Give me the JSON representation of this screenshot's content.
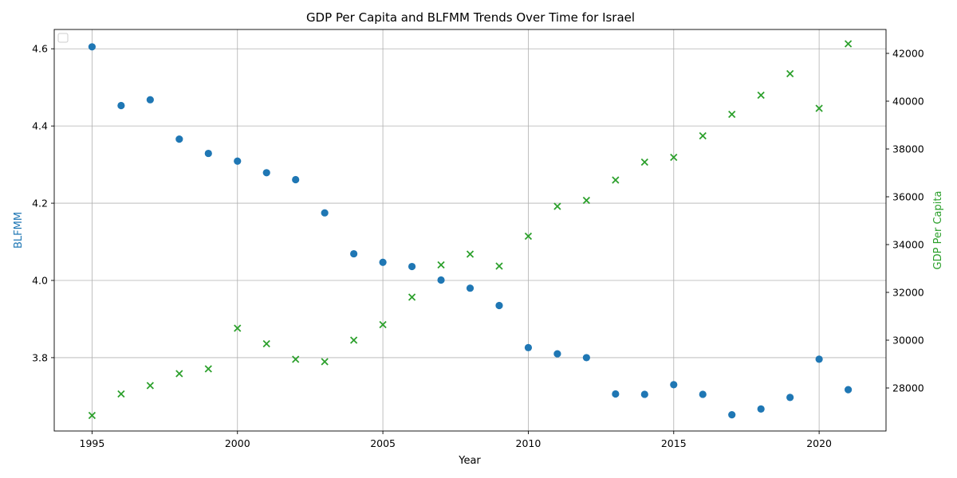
{
  "chart_data": {
    "type": "scatter",
    "title": "GDP Per Capita and BLFMM Trends Over Time for Israel",
    "xlabel": "Year",
    "ylabel_left": "BLFMM",
    "ylabel_right": "GDP Per Capita",
    "colors": {
      "left": "#1f77b4",
      "right": "#2ca02c",
      "grid": "#b0b0b0"
    },
    "xlim": [
      1993.7,
      2022.3
    ],
    "ylim_left": [
      3.61,
      4.65
    ],
    "ylim_right": [
      26200,
      43000
    ],
    "x_ticks": [
      1995,
      2000,
      2005,
      2010,
      2015,
      2020
    ],
    "y_ticks_left": [
      3.8,
      4.0,
      4.2,
      4.4,
      4.6
    ],
    "y_ticks_left_labels": [
      "3.8",
      "4.0",
      "4.2",
      "4.4",
      "4.6"
    ],
    "y_ticks_right": [
      28000,
      30000,
      32000,
      34000,
      36000,
      38000,
      40000,
      42000
    ],
    "y_ticks_right_labels": [
      "28000",
      "30000",
      "32000",
      "34000",
      "36000",
      "38000",
      "40000",
      "42000"
    ],
    "grid": true,
    "legend": "top-left (empty)",
    "x": [
      1995,
      1996,
      1997,
      1998,
      1999,
      2000,
      2001,
      2002,
      2003,
      2004,
      2005,
      2006,
      2007,
      2008,
      2009,
      2010,
      2011,
      2012,
      2013,
      2014,
      2015,
      2016,
      2017,
      2018,
      2019,
      2020,
      2021
    ],
    "series": [
      {
        "name": "BLFMM",
        "axis": "left",
        "marker": "circle",
        "values": [
          4.605,
          4.453,
          4.468,
          4.366,
          4.329,
          4.309,
          4.279,
          4.261,
          4.175,
          4.069,
          4.047,
          4.036,
          4.001,
          3.98,
          3.935,
          3.826,
          3.81,
          3.8,
          3.706,
          3.705,
          3.73,
          3.705,
          3.652,
          3.667,
          3.697,
          3.796,
          3.717
        ]
      },
      {
        "name": "GDP Per Capita",
        "axis": "right",
        "marker": "x",
        "values": [
          26850,
          27750,
          28100,
          28600,
          28800,
          30500,
          29850,
          29200,
          29100,
          30000,
          30650,
          31800,
          33150,
          33600,
          33100,
          34350,
          35600,
          35850,
          36700,
          37450,
          37650,
          38550,
          39450,
          40250,
          41150,
          39700,
          42400
        ]
      }
    ]
  }
}
